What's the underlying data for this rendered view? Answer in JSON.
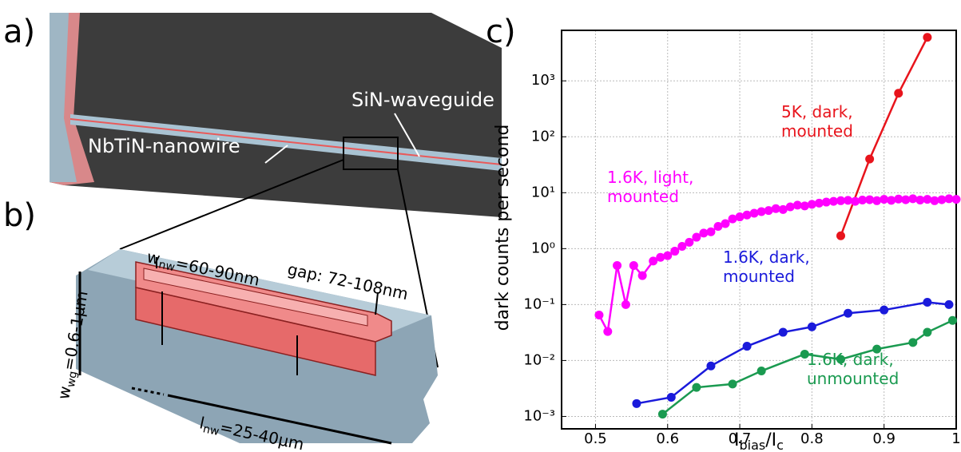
{
  "panel_a": {
    "letter": "a)",
    "waveguide": "SiN-waveguide",
    "nanowire": "NbTiN-nanowire"
  },
  "panel_b": {
    "letter": "b)",
    "w_nw": [
      "w",
      "nw",
      "=60-90nm"
    ],
    "gap": "gap: 72-108nm",
    "w_wg": [
      "w",
      "wg",
      "=0.6-1μm"
    ],
    "l_nw": [
      "l",
      "nw",
      "=25-40μm"
    ]
  },
  "panel_c": {
    "letter": "c)"
  },
  "chart_data": {
    "type": "line",
    "ylabel": "dark counts per second",
    "xlabel": [
      "I",
      "bias",
      "/I",
      "c"
    ],
    "log_y": true,
    "grid": true,
    "xlim": [
      0.453,
      1.0
    ],
    "xticks": [
      0.5,
      0.6,
      0.7,
      0.8,
      0.9,
      1
    ],
    "ylim": [
      0.0006,
      8000
    ],
    "yticks": [
      {
        "value": 0.001,
        "label": "10⁻³"
      },
      {
        "value": 0.01,
        "label": "10⁻²"
      },
      {
        "value": 0.1,
        "label": "10⁻¹"
      },
      {
        "value": 1,
        "label": "10⁰"
      },
      {
        "value": 10,
        "label": "10¹"
      },
      {
        "value": 100,
        "label": "10²"
      },
      {
        "value": 1000,
        "label": "10³"
      }
    ],
    "series": [
      {
        "name": "5K, dark, mounted",
        "color": "#e8141c",
        "x": [
          0.84,
          0.88,
          0.92,
          0.96
        ],
        "values": [
          1.7,
          40,
          600,
          6000
        ]
      },
      {
        "name": "1.6K, light, mounted",
        "color": "#ff00ff",
        "x": [
          0.505,
          0.517,
          0.53,
          0.542,
          0.553,
          0.565,
          0.58,
          0.59,
          0.6,
          0.61,
          0.62,
          0.63,
          0.64,
          0.65,
          0.66,
          0.67,
          0.68,
          0.69,
          0.7,
          0.71,
          0.72,
          0.73,
          0.74,
          0.75,
          0.76,
          0.77,
          0.78,
          0.79,
          0.8,
          0.81,
          0.82,
          0.83,
          0.84,
          0.85,
          0.86,
          0.87,
          0.88,
          0.89,
          0.9,
          0.91,
          0.92,
          0.93,
          0.94,
          0.95,
          0.96,
          0.97,
          0.98,
          0.99,
          1.0
        ],
        "values": [
          0.065,
          0.033,
          0.5,
          0.1,
          0.5,
          0.33,
          0.6,
          0.7,
          0.75,
          0.9,
          1.1,
          1.3,
          1.6,
          1.9,
          2.0,
          2.5,
          2.8,
          3.4,
          3.7,
          4.0,
          4.3,
          4.6,
          4.8,
          5.2,
          5.0,
          5.6,
          6.0,
          5.8,
          6.2,
          6.5,
          6.8,
          7.0,
          7.2,
          7.3,
          7.0,
          7.4,
          7.5,
          7.2,
          7.6,
          7.3,
          7.7,
          7.5,
          7.8,
          7.4,
          7.6,
          7.2,
          7.5,
          7.8,
          7.6
        ]
      },
      {
        "name": "1.6K, dark, mounted",
        "color": "#1a1adb",
        "x": [
          0.557,
          0.605,
          0.66,
          0.71,
          0.76,
          0.8,
          0.85,
          0.9,
          0.96,
          0.99
        ],
        "values": [
          0.0017,
          0.0022,
          0.008,
          0.018,
          0.032,
          0.04,
          0.07,
          0.08,
          0.11,
          0.1
        ]
      },
      {
        "name": "1.6K, dark, unmounted",
        "color": "#1a9a50",
        "x": [
          0.593,
          0.64,
          0.69,
          0.73,
          0.79,
          0.84,
          0.89,
          0.94,
          0.96,
          0.995
        ],
        "values": [
          0.0011,
          0.0033,
          0.0038,
          0.0065,
          0.013,
          0.0105,
          0.016,
          0.021,
          0.032,
          0.052
        ]
      }
    ]
  }
}
